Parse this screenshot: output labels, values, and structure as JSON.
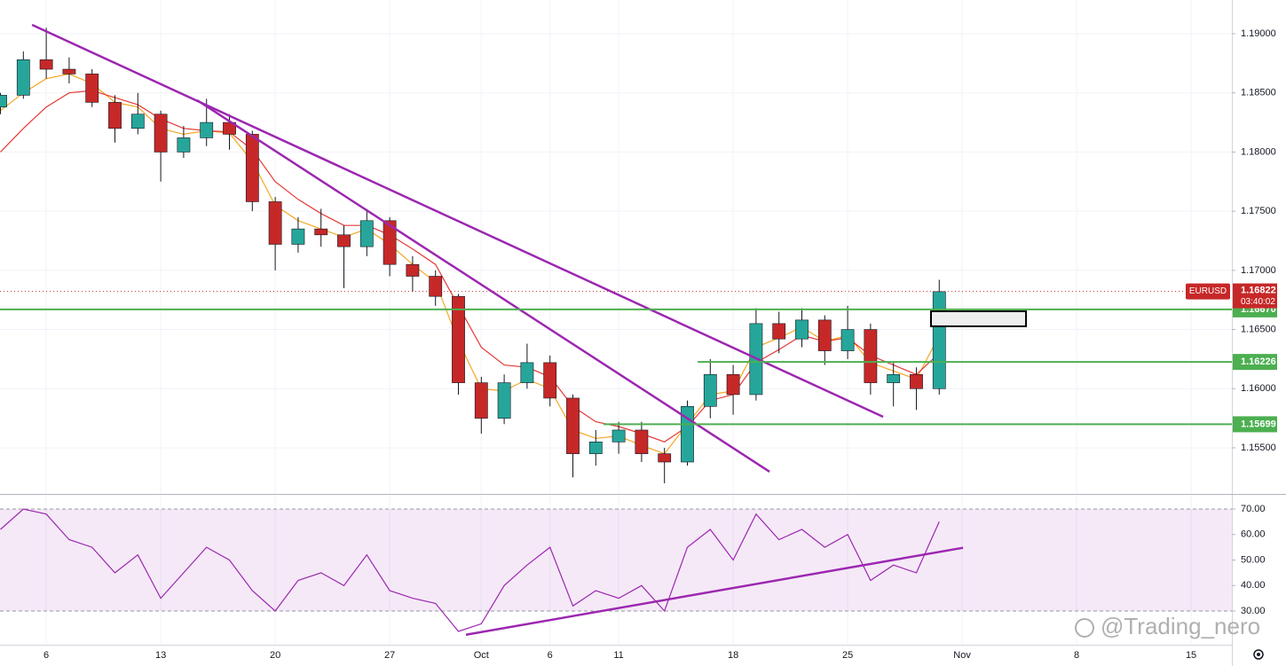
{
  "chart_data": {
    "type": "candlestick",
    "symbol": "EURUSD",
    "countdown": "03:40:02",
    "x": [
      -2,
      -1,
      0,
      1,
      2,
      3,
      4,
      5,
      6,
      7,
      8,
      9,
      10,
      11,
      12,
      13,
      14,
      15,
      16,
      17,
      18,
      19,
      20,
      21,
      22,
      23,
      24,
      25,
      26,
      27,
      28,
      29,
      30,
      31,
      32,
      33,
      34,
      35,
      36,
      37,
      38,
      39
    ],
    "open": [
      1.1838,
      1.1848,
      1.1878,
      1.187,
      1.1866,
      1.1842,
      1.182,
      1.1832,
      1.18,
      1.1812,
      1.1825,
      1.1815,
      1.1758,
      1.1722,
      1.1735,
      1.173,
      1.172,
      1.1742,
      1.1705,
      1.1695,
      1.1678,
      1.1605,
      1.1575,
      1.1605,
      1.1622,
      1.1592,
      1.1545,
      1.1555,
      1.1565,
      1.1545,
      1.1538,
      1.1585,
      1.1612,
      1.1595,
      1.1655,
      1.1642,
      1.1658,
      1.1632,
      1.165,
      1.1605,
      1.1612,
      1.16
    ],
    "high": [
      1.185,
      1.1885,
      1.1905,
      1.188,
      1.187,
      1.1848,
      1.185,
      1.1835,
      1.1822,
      1.1845,
      1.1832,
      1.1818,
      1.1762,
      1.1745,
      1.1752,
      1.1738,
      1.175,
      1.1745,
      1.1712,
      1.17,
      1.168,
      1.161,
      1.1612,
      1.1638,
      1.1628,
      1.1595,
      1.1565,
      1.1572,
      1.1572,
      1.155,
      1.159,
      1.1625,
      1.162,
      1.1668,
      1.1665,
      1.1668,
      1.1662,
      1.167,
      1.1655,
      1.1622,
      1.1618,
      1.1692
    ],
    "low": [
      1.1832,
      1.1845,
      1.1862,
      1.1858,
      1.1838,
      1.1808,
      1.1815,
      1.1775,
      1.1795,
      1.1805,
      1.1802,
      1.175,
      1.17,
      1.1715,
      1.172,
      1.1685,
      1.1712,
      1.1695,
      1.1682,
      1.167,
      1.1595,
      1.1562,
      1.157,
      1.16,
      1.1585,
      1.1525,
      1.1535,
      1.1545,
      1.1538,
      1.152,
      1.1535,
      1.1575,
      1.1578,
      1.159,
      1.163,
      1.1635,
      1.162,
      1.1625,
      1.1595,
      1.1585,
      1.1582,
      1.1595
    ],
    "close": [
      1.1848,
      1.1878,
      1.187,
      1.1866,
      1.1842,
      1.182,
      1.1832,
      1.18,
      1.1812,
      1.1825,
      1.1815,
      1.1758,
      1.1722,
      1.1735,
      1.173,
      1.172,
      1.1742,
      1.1705,
      1.1695,
      1.1678,
      1.1605,
      1.1575,
      1.1605,
      1.1622,
      1.1592,
      1.1545,
      1.1555,
      1.1565,
      1.1545,
      1.1538,
      1.1585,
      1.1612,
      1.1595,
      1.1655,
      1.1642,
      1.1658,
      1.1632,
      1.165,
      1.1605,
      1.1612,
      1.16,
      1.1682
    ],
    "up_color": "#26a69a",
    "down_color": "#c62828",
    "series": [
      {
        "color": "#f5a623",
        "values": [
          1.1835,
          1.185,
          1.1862,
          1.1866,
          1.1858,
          1.1842,
          1.1838,
          1.182,
          1.1815,
          1.1818,
          1.1816,
          1.1792,
          1.1755,
          1.1742,
          1.1735,
          1.1728,
          1.1735,
          1.1722,
          1.1705,
          1.169,
          1.164,
          1.16,
          1.1598,
          1.1608,
          1.16,
          1.1565,
          1.1558,
          1.156,
          1.1552,
          1.1545,
          1.157,
          1.1595,
          1.1598,
          1.1635,
          1.1643,
          1.1652,
          1.164,
          1.1645,
          1.1622,
          1.1615,
          1.1608,
          1.1645
        ]
      },
      {
        "color": "#e53935",
        "values": [
          1.18,
          1.182,
          1.1838,
          1.185,
          1.1852,
          1.1846,
          1.184,
          1.1828,
          1.182,
          1.1818,
          1.1817,
          1.1802,
          1.1775,
          1.176,
          1.1748,
          1.1738,
          1.1738,
          1.173,
          1.1718,
          1.1705,
          1.167,
          1.1635,
          1.162,
          1.1618,
          1.161,
          1.1585,
          1.1572,
          1.1568,
          1.1562,
          1.1555,
          1.1568,
          1.159,
          1.1595,
          1.1622,
          1.1633,
          1.1645,
          1.164,
          1.1643,
          1.1628,
          1.162,
          1.1612,
          1.163
        ]
      }
    ],
    "xlim": [
      -2.02,
      51.78
    ],
    "xticks": [
      {
        "value": 0,
        "label": "6"
      },
      {
        "value": 5,
        "label": "13"
      },
      {
        "value": 10,
        "label": "20"
      },
      {
        "value": 15,
        "label": "27"
      },
      {
        "value": 19,
        "label": "Oct"
      },
      {
        "value": 22,
        "label": "6"
      },
      {
        "value": 25,
        "label": "11"
      },
      {
        "value": 30,
        "label": "18"
      },
      {
        "value": 35,
        "label": "25"
      },
      {
        "value": 40,
        "label": "Nov"
      },
      {
        "value": 45,
        "label": "8"
      },
      {
        "value": 50,
        "label": "15"
      }
    ],
    "ylim": [
      1.1511,
      1.19285
    ],
    "yticks": [
      {
        "value": 1.155,
        "label": "1.15500"
      },
      {
        "value": 1.16,
        "label": "1.16000"
      },
      {
        "value": 1.165,
        "label": "1.16500"
      },
      {
        "value": 1.17,
        "label": "1.17000"
      },
      {
        "value": 1.175,
        "label": "1.17500"
      },
      {
        "value": 1.18,
        "label": "1.18000"
      },
      {
        "value": 1.185,
        "label": "1.18500"
      },
      {
        "value": 1.19,
        "label": "1.19000"
      }
    ],
    "grid": true,
    "last_price": {
      "value": 1.16822,
      "label": "1.16822"
    },
    "levels": [
      {
        "value": 1.1667,
        "label": "1.16670"
      },
      {
        "value": 1.16226,
        "label": "1.16226",
        "from": 28.45
      },
      {
        "value": 1.15699,
        "label": "1.15699",
        "from": 24.34
      }
    ],
    "level_color": "#4caf50",
    "trendline_color": "#9c27b0",
    "trendlines": [
      {
        "x": [
          -0.62,
          36.55
        ],
        "y": [
          1.19075,
          1.15762
        ]
      },
      {
        "x": [
          6.59,
          31.59
        ],
        "y": [
          1.18438,
          1.15298
        ]
      }
    ],
    "box": {
      "x": [
        38.64,
        42.79
      ],
      "y": [
        1.16654,
        1.16527
      ]
    },
    "rsi": {
      "type": "line",
      "color": "#9c27b0",
      "values": [
        62,
        70,
        68,
        58,
        55,
        45,
        52,
        35,
        45,
        55,
        50,
        38,
        30,
        42,
        45,
        40,
        52,
        38,
        35,
        33,
        22,
        25,
        40,
        48,
        55,
        32,
        38,
        35,
        40,
        30,
        55,
        62,
        50,
        68,
        58,
        62,
        55,
        60,
        42,
        48,
        45,
        65
      ],
      "ylim": [
        16.8,
        75.2
      ],
      "yticks": [
        {
          "value": 30,
          "label": "30.00"
        },
        {
          "value": 40,
          "label": "40.00"
        },
        {
          "value": 50,
          "label": "50.00"
        },
        {
          "value": 60,
          "label": "60.00"
        },
        {
          "value": 70,
          "label": "70.00"
        }
      ],
      "trendline": {
        "x": [
          18.33,
          40.04
        ],
        "y": [
          20.7,
          54.8
        ]
      }
    },
    "watermark": "@Trading_nero"
  }
}
